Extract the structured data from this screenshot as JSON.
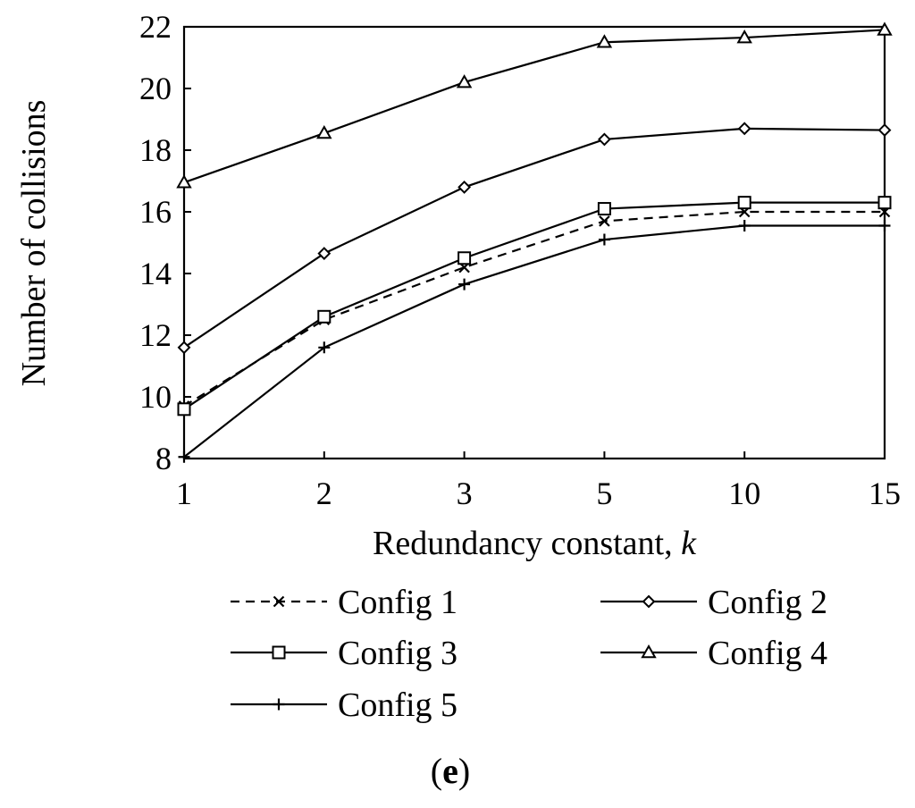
{
  "chart_data": {
    "type": "line",
    "title": "",
    "xlabel": "Redundancy constant, ",
    "xlabel_italic_part": "k",
    "ylabel": "Number of collisions",
    "categories": [
      "1",
      "2",
      "3",
      "5",
      "10",
      "15"
    ],
    "ylim": [
      8,
      22
    ],
    "yticks": [
      "8",
      "10",
      "12",
      "14",
      "16",
      "18",
      "20",
      "22"
    ],
    "grid": false,
    "legend_position": "bottom",
    "series": [
      {
        "name": "Config 1",
        "marker": "x",
        "line_style": "dashed",
        "values": [
          9.7,
          12.5,
          14.2,
          15.7,
          16.0,
          16.0
        ]
      },
      {
        "name": "Config 2",
        "marker": "diamond",
        "line_style": "solid",
        "values": [
          11.6,
          14.65,
          16.8,
          18.35,
          18.7,
          18.65
        ]
      },
      {
        "name": "Config 3",
        "marker": "square",
        "line_style": "solid",
        "values": [
          9.6,
          12.6,
          14.5,
          16.1,
          16.3,
          16.3
        ]
      },
      {
        "name": "Config 4",
        "marker": "triangle",
        "line_style": "solid",
        "values": [
          16.95,
          18.55,
          20.2,
          21.5,
          21.65,
          21.9
        ]
      },
      {
        "name": "Config 5",
        "marker": "plus",
        "line_style": "solid",
        "values": [
          8.05,
          11.6,
          13.65,
          15.1,
          15.55,
          15.55
        ]
      }
    ],
    "panel_label": {
      "open": "(",
      "letter": "e",
      "close": ")"
    },
    "colors": {
      "line": "#000000",
      "background": "#ffffff"
    }
  }
}
